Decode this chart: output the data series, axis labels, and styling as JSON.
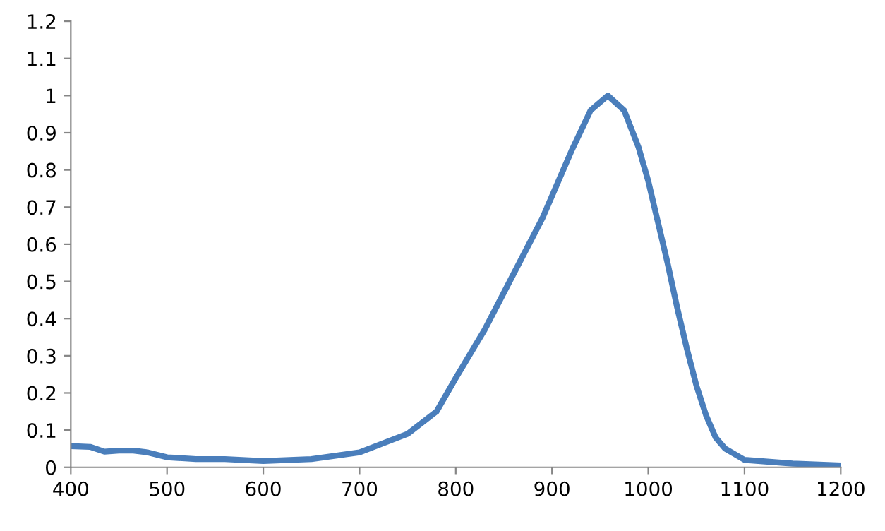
{
  "chart_data": {
    "type": "line",
    "x": [
      400,
      420,
      435,
      450,
      465,
      480,
      500,
      530,
      560,
      600,
      650,
      700,
      750,
      780,
      800,
      830,
      860,
      890,
      920,
      940,
      958,
      975,
      990,
      1000,
      1010,
      1020,
      1030,
      1040,
      1050,
      1060,
      1070,
      1080,
      1100,
      1150,
      1200
    ],
    "series": [
      {
        "color": "#4a7ebb",
        "values": [
          0.057,
          0.055,
          0.042,
          0.045,
          0.045,
          0.04,
          0.027,
          0.022,
          0.022,
          0.017,
          0.022,
          0.04,
          0.09,
          0.15,
          0.24,
          0.37,
          0.52,
          0.67,
          0.85,
          0.96,
          1.0,
          0.96,
          0.86,
          0.77,
          0.66,
          0.55,
          0.43,
          0.32,
          0.22,
          0.14,
          0.08,
          0.05,
          0.02,
          0.01,
          0.005
        ]
      }
    ],
    "xlim": [
      400,
      1200
    ],
    "xticks": [
      400,
      500,
      600,
      700,
      800,
      900,
      1000,
      1100,
      1200
    ],
    "ylim": [
      0,
      1.2
    ],
    "yticks": [
      0,
      0.1,
      0.2,
      0.3,
      0.4,
      0.5,
      0.6,
      0.7,
      0.8,
      0.9,
      1,
      1.1,
      1.2
    ],
    "grid": false,
    "legend": false,
    "marker": "none",
    "line_style": "solid"
  }
}
